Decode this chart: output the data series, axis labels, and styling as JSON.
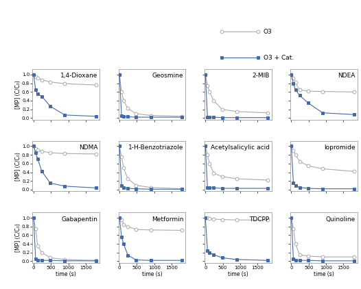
{
  "compounds": [
    "1,4-Dioxane",
    "Geosmine",
    "2-MIB",
    "NDEA",
    "NDMA",
    "1-H-Benzotriazole",
    "Acetylsalicylic acid",
    "Iopromide",
    "Gabapentin",
    "Metformin",
    "TDCPP",
    "Quinoline"
  ],
  "time_x": [
    0,
    60,
    120,
    240,
    480,
    900,
    1800
  ],
  "o3_data": [
    [
      1.0,
      0.95,
      0.92,
      0.88,
      0.83,
      0.79,
      0.76
    ],
    [
      1.0,
      0.6,
      0.4,
      0.22,
      0.1,
      0.06,
      0.04
    ],
    [
      1.0,
      0.75,
      0.6,
      0.4,
      0.2,
      0.15,
      0.12
    ],
    [
      1.0,
      0.92,
      0.82,
      0.65,
      0.62,
      0.61,
      0.6
    ],
    [
      1.0,
      0.95,
      0.92,
      0.88,
      0.85,
      0.83,
      0.82
    ],
    [
      1.0,
      0.75,
      0.5,
      0.25,
      0.1,
      0.05,
      0.02
    ],
    [
      1.0,
      0.8,
      0.6,
      0.38,
      0.3,
      0.25,
      0.22
    ],
    [
      1.0,
      0.9,
      0.8,
      0.65,
      0.55,
      0.48,
      0.42
    ],
    [
      1.0,
      0.75,
      0.35,
      0.2,
      0.08,
      0.04,
      0.02
    ],
    [
      1.0,
      0.95,
      0.85,
      0.8,
      0.73,
      0.72,
      0.71
    ],
    [
      1.0,
      1.0,
      0.98,
      0.97,
      0.96,
      0.95,
      0.95
    ],
    [
      1.0,
      0.75,
      0.4,
      0.15,
      0.12,
      0.1,
      0.1
    ]
  ],
  "cat_data": [
    [
      1.0,
      0.65,
      0.55,
      0.5,
      0.27,
      0.07,
      0.04
    ],
    [
      1.0,
      0.05,
      0.03,
      0.03,
      0.02,
      0.02,
      0.02
    ],
    [
      1.0,
      0.02,
      0.02,
      0.02,
      0.01,
      0.01,
      0.01
    ],
    [
      1.0,
      0.8,
      0.65,
      0.52,
      0.35,
      0.12,
      0.08
    ],
    [
      1.0,
      0.85,
      0.7,
      0.42,
      0.15,
      0.08,
      0.04
    ],
    [
      1.0,
      0.1,
      0.05,
      0.03,
      0.02,
      0.01,
      0.01
    ],
    [
      1.0,
      0.05,
      0.04,
      0.04,
      0.03,
      0.03,
      0.03
    ],
    [
      1.0,
      0.15,
      0.1,
      0.05,
      0.03,
      0.02,
      0.02
    ],
    [
      1.0,
      0.05,
      0.03,
      0.02,
      0.02,
      0.01,
      0.01
    ],
    [
      1.0,
      0.56,
      0.4,
      0.14,
      0.03,
      0.02,
      0.02
    ],
    [
      1.0,
      0.25,
      0.2,
      0.15,
      0.08,
      0.04,
      0.02
    ],
    [
      1.0,
      0.05,
      0.03,
      0.02,
      0.02,
      0.01,
      0.01
    ]
  ],
  "o3_color": "#aaaaaa",
  "cat_color": "#4169B0",
  "xlabel": "time (s)",
  "ylabel": "[MP] (C/C₀)",
  "xticks": [
    0,
    500,
    1000,
    1500
  ],
  "yticks": [
    0.0,
    0.2,
    0.4,
    0.6,
    0.8,
    1.0
  ],
  "legend_o3": "O3",
  "legend_cat": "O3 + Cat.",
  "title_fontsize": 6.5,
  "axis_fontsize": 5.5,
  "tick_fontsize": 5,
  "marker_size": 3.5,
  "line_width": 0.8
}
